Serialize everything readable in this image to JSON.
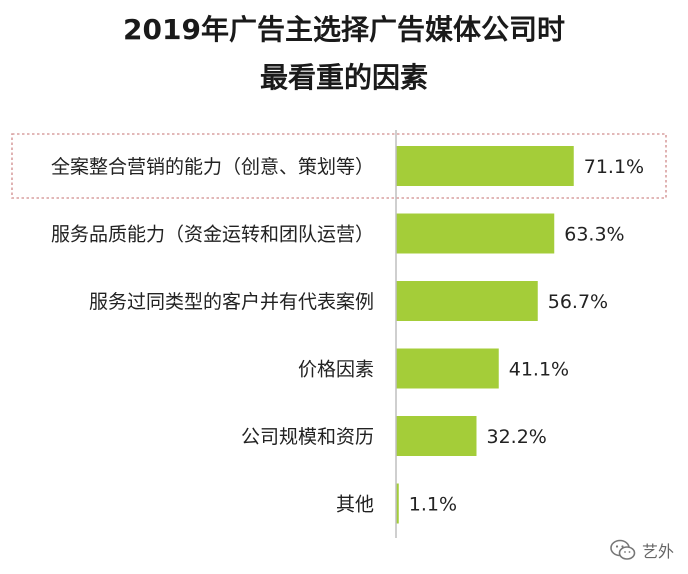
{
  "header": {
    "title_line1": "2019年广告主选择广告媒体公司时",
    "title_line2": "最看重的因素"
  },
  "chart_data": {
    "type": "bar",
    "orientation": "horizontal",
    "title": "2019年广告主选择广告媒体公司时最看重的因素",
    "categories": [
      "全案整合营销的能力（创意、策划等）",
      "服务品质能力（资金运转和团队运营）",
      "服务过同类型的客户并有代表案例",
      "价格因素",
      "公司规模和资历",
      "其他"
    ],
    "values": [
      71.1,
      63.3,
      56.7,
      41.1,
      32.2,
      1.1
    ],
    "value_labels": [
      "71.1%",
      "63.3%",
      "56.7%",
      "41.1%",
      "32.2%",
      "1.1%"
    ],
    "highlighted_category_index": 0,
    "grid": false,
    "legend": "none",
    "bar_color": "#a4cd39",
    "highlight_border_color": "#d9a0a0"
  },
  "watermark": {
    "icon": "wechat-icon",
    "text": "艺外"
  }
}
